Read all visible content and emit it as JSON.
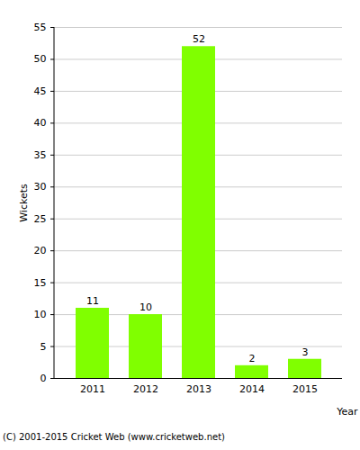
{
  "chart_data": {
    "type": "bar",
    "categories": [
      "2011",
      "2012",
      "2013",
      "2014",
      "2015"
    ],
    "values": [
      11,
      10,
      52,
      2,
      3
    ],
    "color": "#80ff00",
    "xlabel": "Year",
    "ylabel": "Wickets",
    "ylim": [
      0,
      55
    ],
    "yticks": [
      0,
      5,
      10,
      15,
      20,
      25,
      30,
      35,
      40,
      45,
      50,
      55
    ],
    "grid": true,
    "data_labels": true,
    "caption": "(C) 2001-2015 Cricket Web (www.cricketweb.net)"
  }
}
